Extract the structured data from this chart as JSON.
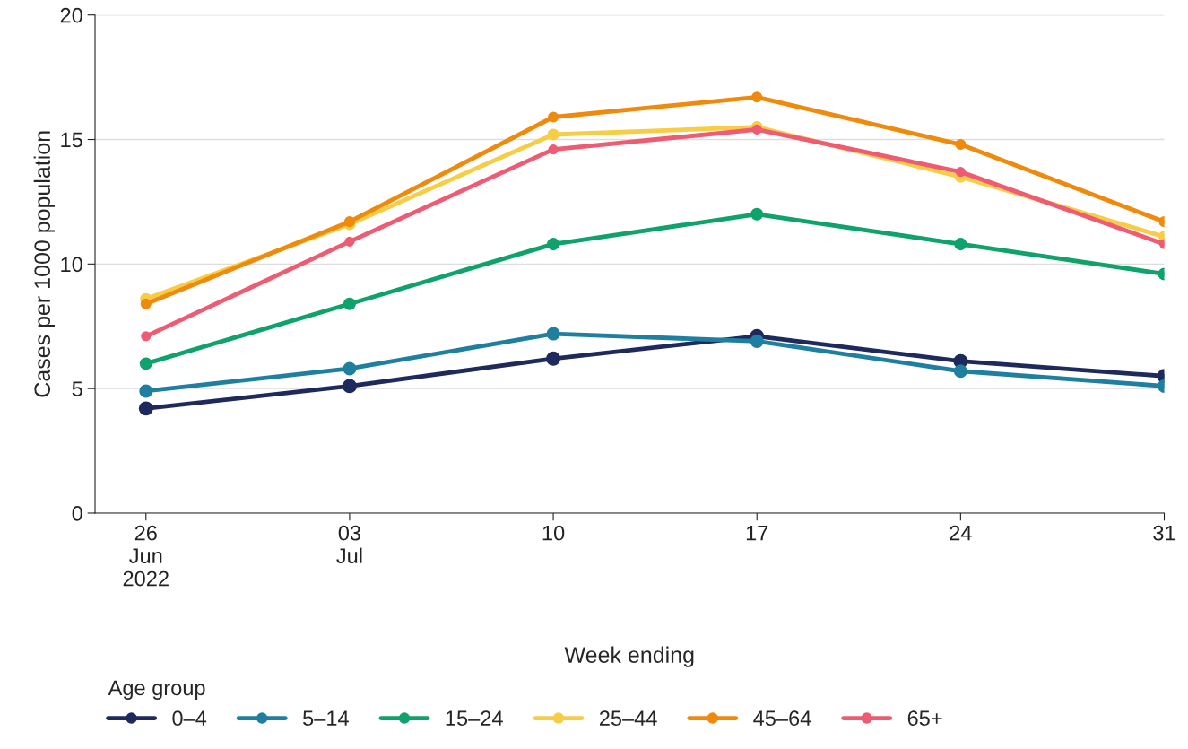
{
  "chart_data": {
    "type": "line",
    "xlabel": "Week ending",
    "ylabel": "Cases per 1000 population",
    "legend_title": "Age group",
    "x": [
      "2022-06-26",
      "2022-07-03",
      "2022-07-10",
      "2022-07-17",
      "2022-07-24",
      "2022-07-31"
    ],
    "xlim": [
      "2022-06-24T06:00",
      "2022-07-31"
    ],
    "xticks": [
      {
        "value": "2022-06-26",
        "label": "26\nJun\n2022"
      },
      {
        "value": "2022-07-03",
        "label": "03\nJul"
      },
      {
        "value": "2022-07-10",
        "label": "10"
      },
      {
        "value": "2022-07-17",
        "label": "17"
      },
      {
        "value": "2022-07-24",
        "label": "24"
      },
      {
        "value": "2022-07-31",
        "label": "31"
      }
    ],
    "ylim": [
      0,
      20
    ],
    "yticks": [
      0,
      5,
      10,
      15,
      20
    ],
    "grid": "y",
    "legend": "bottom",
    "marker": "circle",
    "line_style": "solid",
    "series": [
      {
        "name": "0–4",
        "color": "#1f2a5c",
        "values": [
          4.2,
          5.1,
          6.2,
          7.1,
          6.1,
          5.5
        ]
      },
      {
        "name": "5–14",
        "color": "#1f7fa0",
        "values": [
          4.9,
          5.8,
          7.2,
          6.9,
          5.7,
          5.1
        ]
      },
      {
        "name": "15–24",
        "color": "#0fa36b",
        "values": [
          6.0,
          8.4,
          10.8,
          12.0,
          10.8,
          9.6
        ]
      },
      {
        "name": "25–44",
        "color": "#f6cd45",
        "values": [
          8.6,
          11.6,
          15.2,
          15.5,
          13.5,
          11.1
        ]
      },
      {
        "name": "45–64",
        "color": "#f08a0c",
        "values": [
          8.4,
          11.7,
          15.9,
          16.7,
          14.8,
          11.7
        ]
      },
      {
        "name": "65+",
        "color": "#ee5b73",
        "values": [
          7.1,
          10.9,
          14.6,
          15.4,
          13.7,
          10.8
        ]
      }
    ]
  }
}
